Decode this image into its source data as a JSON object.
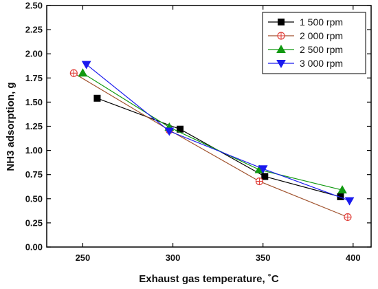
{
  "chart_data": {
    "type": "line",
    "title": "",
    "xlabel": "Exhaust gas temperature, ˚C",
    "ylabel": "NH3 adsorption, g",
    "xlim": [
      230,
      410
    ],
    "ylim": [
      0,
      2.5
    ],
    "x_ticks": [
      "250",
      "300",
      "350",
      "400"
    ],
    "y_ticks": [
      "0.00",
      "0.25",
      "0.50",
      "0.75",
      "1.00",
      "1.25",
      "1.50",
      "1.75",
      "2.00",
      "2.25",
      "2.50"
    ],
    "grid": false,
    "legend_position": "top-right",
    "series": [
      {
        "name": "1 500 rpm",
        "color": "#000000",
        "marker": "square-filled",
        "points": [
          [
            258,
            1.54
          ],
          [
            304,
            1.22
          ],
          [
            351,
            0.73
          ],
          [
            393,
            0.52
          ]
        ]
      },
      {
        "name": "2 000 rpm",
        "color": "#e0403a",
        "line_color": "#a0522d",
        "marker": "circle-plus",
        "points": [
          [
            245,
            1.8
          ],
          [
            298,
            1.21
          ],
          [
            348,
            0.68
          ],
          [
            397,
            0.31
          ]
        ]
      },
      {
        "name": "2 500 rpm",
        "color": "#119911",
        "marker": "triangle-up-filled",
        "points": [
          [
            250,
            1.8
          ],
          [
            298,
            1.24
          ],
          [
            348,
            0.8
          ],
          [
            394,
            0.59
          ]
        ]
      },
      {
        "name": "3 000 rpm",
        "color": "#1a1aee",
        "marker": "triangle-down-filled",
        "points": [
          [
            252,
            1.89
          ],
          [
            298,
            1.2
          ],
          [
            350,
            0.81
          ],
          [
            398,
            0.48
          ]
        ]
      }
    ]
  }
}
